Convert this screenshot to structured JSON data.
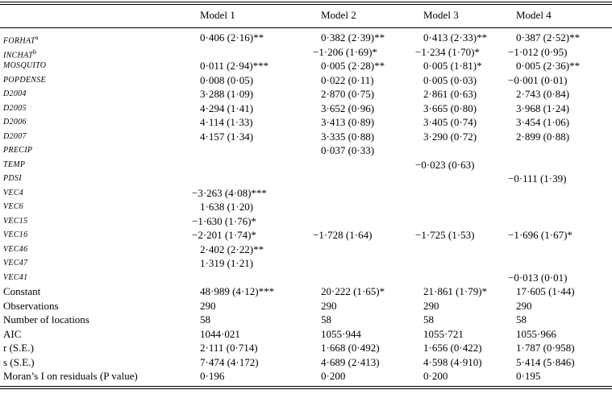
{
  "table": {
    "header": [
      "Model 1",
      "Model 2",
      "Model 3",
      "Model 4"
    ],
    "rows": [
      {
        "label": "FORHAT",
        "sup": "a",
        "cells": [
          "0·406 (2·16)**",
          "0·382 (2·39)**",
          "0·413 (2·33)**",
          "0·387 (2·52)**"
        ]
      },
      {
        "label": "INCHAT",
        "sup": "b",
        "cells": [
          null,
          "−1·206 (1·69)*",
          "−1·234 (1·70)*",
          "−1·012 (0·95)"
        ]
      },
      {
        "label": "MOSQUITO",
        "cells": [
          "0·011 (2·94)***",
          "0·005 (2·28)**",
          "0·005 (1·81)*",
          "0·005 (2·36)**"
        ]
      },
      {
        "label": "POPDENSE",
        "cells": [
          "0·008 (0·05)",
          "0·022 (0·11)",
          "0·005 (0·03)",
          "−0·001 (0·01)"
        ]
      },
      {
        "label": "D2004",
        "cells": [
          "3·288 (1·09)",
          "2·870 (0·75)",
          "2·861 (0·63)",
          "2·743 (0·84)"
        ]
      },
      {
        "label": "D2005",
        "cells": [
          "4·294 (1·41)",
          "3·652 (0·96)",
          "3·665 (0·80)",
          "3·968 (1·24)"
        ]
      },
      {
        "label": "D2006",
        "cells": [
          "4·114 (1·33)",
          "3·413 (0·89)",
          "3·405 (0·74)",
          "3·454 (1·06)"
        ]
      },
      {
        "label": "D2007",
        "cells": [
          "4·157 (1·34)",
          "3·335 (0·88)",
          "3·290 (0·72)",
          "2·899 (0·88)"
        ]
      },
      {
        "label": "PRECIP",
        "cells": [
          null,
          "0·037 (0·33)",
          null,
          null
        ]
      },
      {
        "label": "TEMP",
        "cells": [
          null,
          null,
          "−0·023 (0·63)",
          null
        ]
      },
      {
        "label": "PDSI",
        "cells": [
          null,
          null,
          null,
          "−0·111 (1·39)"
        ]
      },
      {
        "label": "VEC4",
        "cells": [
          "−3·263 (4·08)***",
          null,
          null,
          null
        ]
      },
      {
        "label": "VEC6",
        "cells": [
          "1·638 (1·20)",
          null,
          null,
          null
        ]
      },
      {
        "label": "VEC15",
        "cells": [
          "−1·630 (1·76)*",
          null,
          null,
          null
        ]
      },
      {
        "label": "VEC16",
        "cells": [
          "−2·201 (1·74)*",
          "−1·728 (1·64)",
          "−1·725 (1·53)",
          "−1·696 (1·67)*"
        ]
      },
      {
        "label": "VEC46",
        "cells": [
          "2·402 (2·22)**",
          null,
          null,
          null
        ]
      },
      {
        "label": "VEC47",
        "cells": [
          "1·319 (1·21)",
          null,
          null,
          null
        ]
      },
      {
        "label": "VEC41",
        "cells": [
          null,
          null,
          null,
          "−0·013 (0·01)"
        ]
      },
      {
        "label": "Constant",
        "cells": [
          "48·989 (4·12)***",
          "20·222 (1·65)*",
          "21·861 (1·79)*",
          "17·605 (1·44)"
        ]
      },
      {
        "label": "Observations",
        "cells": [
          "290",
          "290",
          "290",
          "290"
        ]
      },
      {
        "label": "Number of locations",
        "cells": [
          "58",
          "58",
          "58",
          "58"
        ]
      },
      {
        "label": "AIC",
        "cells": [
          "1044·021",
          "1055·944",
          "1055·721",
          "1055·966"
        ]
      },
      {
        "label": "r (S.E.)",
        "cells": [
          "2·111 (0·714)",
          "1·668 (0·492)",
          "1·656 (0·422)",
          "1·787 (0·958)"
        ]
      },
      {
        "label": "s (S.E.)",
        "cells": [
          "7·474 (4·172)",
          "4·689 (2·413)",
          "4·598 (4·910)",
          "5·414 (5·846)"
        ]
      },
      {
        "label": "Moran’s I on residuals (P value)",
        "cells": [
          "0·196",
          "0·200",
          "0·200",
          "0·195"
        ]
      }
    ]
  }
}
